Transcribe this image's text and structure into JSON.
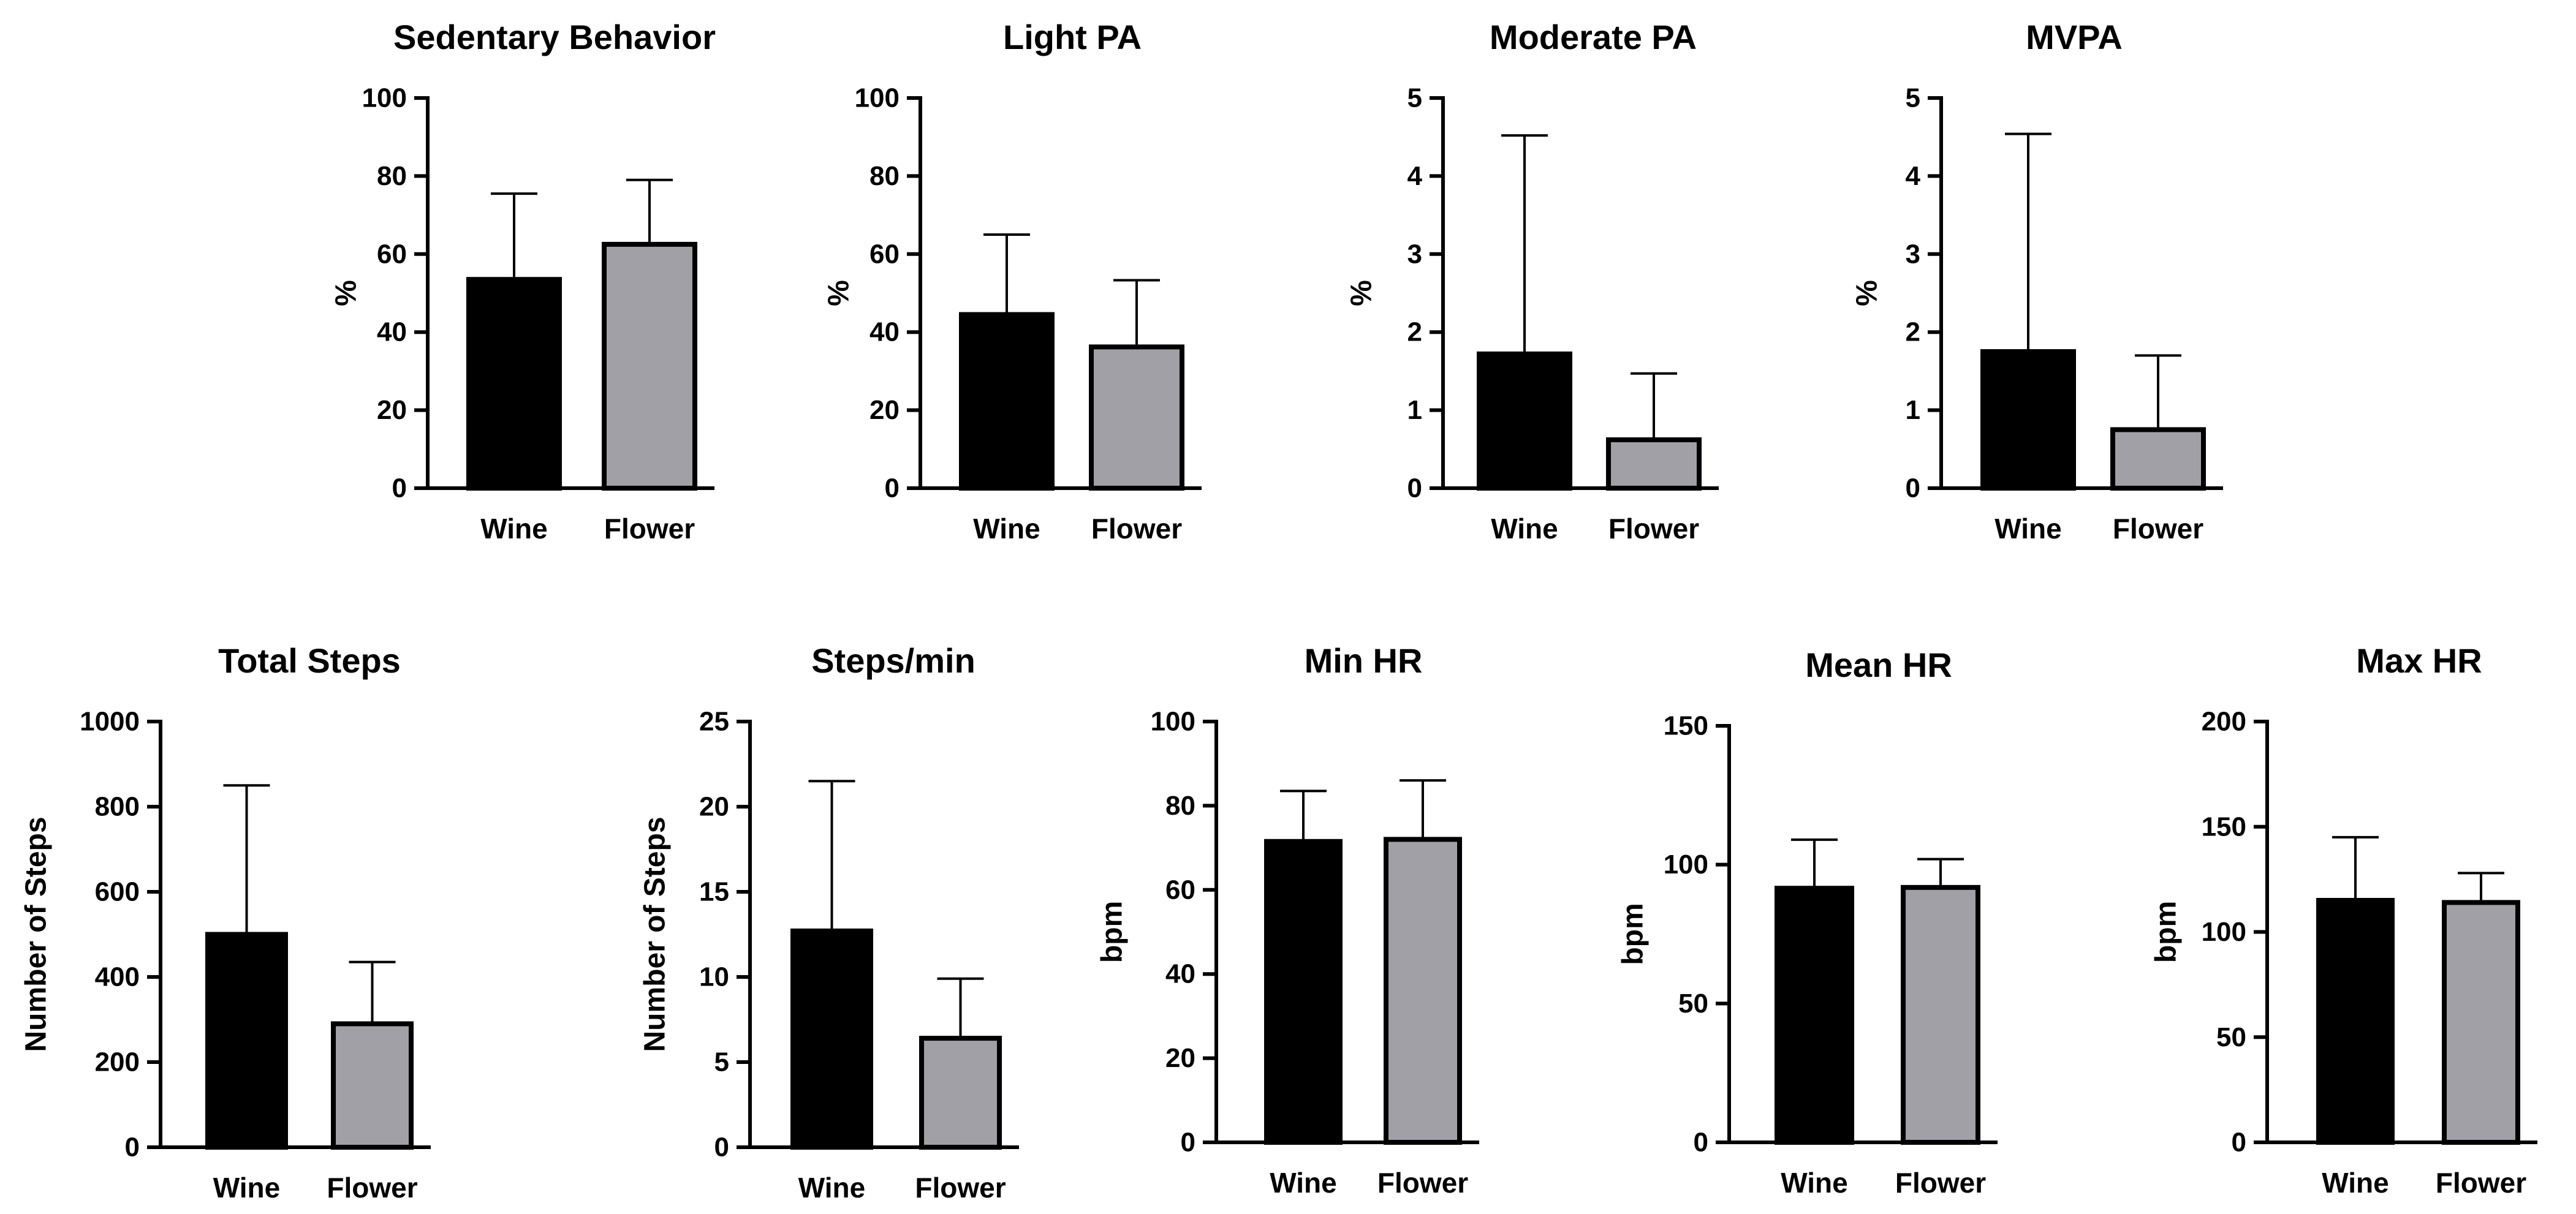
{
  "colors": {
    "wine": "#000000",
    "flower": "#a0a0a6",
    "axis": "#000000",
    "background": "#ffffff"
  },
  "chart_data": [
    {
      "type": "bar",
      "title": "Sedentary Behavior",
      "ylabel": "%",
      "xlabel": "",
      "categories": [
        "Wine",
        "Flower"
      ],
      "values": [
        53.5,
        62.5
      ],
      "sd_upper": [
        75.5,
        79.0
      ],
      "ylim": [
        0,
        100
      ],
      "yticks": [
        0,
        20,
        40,
        60,
        80,
        100
      ],
      "tick_labels": [
        "0",
        "20",
        "40",
        "60",
        "80",
        "100"
      ]
    },
    {
      "type": "bar",
      "title": "Light PA",
      "ylabel": "%",
      "xlabel": "",
      "categories": [
        "Wine",
        "Flower"
      ],
      "values": [
        44.5,
        36.2
      ],
      "sd_upper": [
        65.0,
        53.3
      ],
      "ylim": [
        0,
        100
      ],
      "yticks": [
        0,
        20,
        40,
        60,
        80,
        100
      ],
      "tick_labels": [
        "0",
        "20",
        "40",
        "60",
        "80",
        "100"
      ]
    },
    {
      "type": "bar",
      "title": "Moderate PA",
      "ylabel": "%",
      "xlabel": "",
      "categories": [
        "Wine",
        "Flower"
      ],
      "values": [
        1.72,
        0.62
      ],
      "sd_upper": [
        4.52,
        1.47
      ],
      "ylim": [
        0,
        5
      ],
      "yticks": [
        0,
        1,
        2,
        3,
        4,
        5
      ],
      "tick_labels": [
        "0",
        "1",
        "2",
        "3",
        "4",
        "5"
      ]
    },
    {
      "type": "bar",
      "title": "MVPA",
      "ylabel": "%",
      "xlabel": "",
      "categories": [
        "Wine",
        "Flower"
      ],
      "values": [
        1.75,
        0.75
      ],
      "sd_upper": [
        4.54,
        1.7
      ],
      "ylim": [
        0,
        5
      ],
      "yticks": [
        0,
        1,
        2,
        3,
        4,
        5
      ],
      "tick_labels": [
        "0",
        "1",
        "2",
        "3",
        "4",
        "5"
      ]
    },
    {
      "type": "bar",
      "title": "Total Steps",
      "ylabel": "Number of Steps",
      "xlabel": "",
      "categories": [
        "Wine",
        "Flower"
      ],
      "values": [
        500,
        290
      ],
      "sd_upper": [
        850,
        435
      ],
      "ylim": [
        0,
        1000
      ],
      "yticks": [
        0,
        200,
        400,
        600,
        800,
        1000
      ],
      "tick_labels": [
        "0",
        "200",
        "400",
        "600",
        "800",
        "1000"
      ]
    },
    {
      "type": "bar",
      "title": "Steps/min",
      "ylabel": "Number of Steps",
      "xlabel": "",
      "categories": [
        "Wine",
        "Flower"
      ],
      "values": [
        12.7,
        6.4
      ],
      "sd_upper": [
        21.5,
        9.9
      ],
      "ylim": [
        0,
        25
      ],
      "yticks": [
        0,
        5,
        10,
        15,
        20,
        25
      ],
      "tick_labels": [
        "0",
        "5",
        "10",
        "15",
        "20",
        "25"
      ]
    },
    {
      "type": "bar",
      "title": "Min HR",
      "ylabel": "bpm",
      "xlabel": "",
      "categories": [
        "Wine",
        "Flower"
      ],
      "values": [
        71.5,
        72.0
      ],
      "sd_upper": [
        83.5,
        86.0
      ],
      "ylim": [
        0,
        100
      ],
      "yticks": [
        0,
        20,
        40,
        60,
        80,
        100
      ],
      "tick_labels": [
        "0",
        "20",
        "40",
        "60",
        "80",
        "100"
      ]
    },
    {
      "type": "bar",
      "title": "Mean HR",
      "ylabel": "bpm",
      "xlabel": "",
      "categories": [
        "Wine",
        "Flower"
      ],
      "values": [
        91.5,
        91.8
      ],
      "sd_upper": [
        109.0,
        102.0
      ],
      "ylim": [
        0,
        150
      ],
      "yticks": [
        0,
        50,
        100,
        150
      ],
      "tick_labels": [
        "0",
        "50",
        "100",
        "150"
      ]
    },
    {
      "type": "bar",
      "title": "Max HR",
      "ylabel": "bpm",
      "xlabel": "",
      "categories": [
        "Wine",
        "Flower"
      ],
      "values": [
        115.0,
        114.0
      ],
      "sd_upper": [
        145.0,
        128.0
      ],
      "ylim": [
        0,
        200
      ],
      "yticks": [
        0,
        50,
        100,
        150,
        200
      ],
      "tick_labels": [
        "0",
        "50",
        "100",
        "150",
        "200"
      ]
    }
  ]
}
